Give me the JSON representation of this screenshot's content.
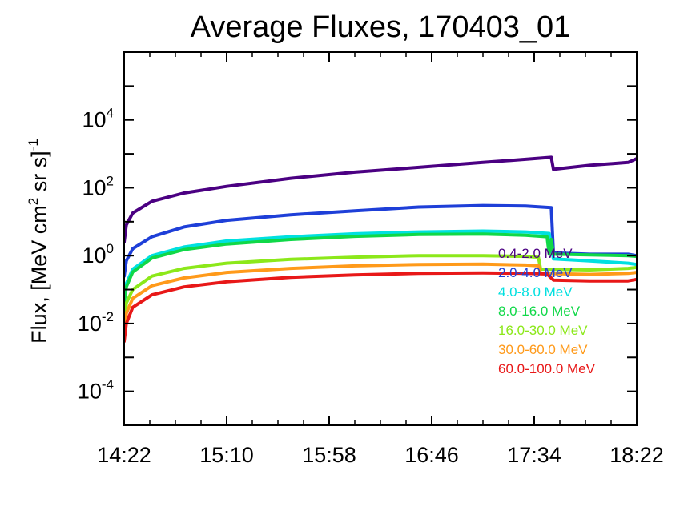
{
  "chart_data": {
    "type": "line",
    "title": "Average Fluxes, 170403_01",
    "ylabel": {
      "prefix": "Flux, [MeV cm",
      "exp1": "2",
      "middle": " sr s]",
      "exp2": "-1"
    },
    "xlabel": "",
    "x_ticks": [
      "14:22",
      "15:10",
      "15:58",
      "16:46",
      "17:34",
      "18:22"
    ],
    "y_scale": "log",
    "ylim": [
      1e-05,
      1000000
    ],
    "xlim": [
      "14:22",
      "18:22"
    ],
    "y_ticks": [
      {
        "base": "10",
        "exp": "-4",
        "value": 0.0001
      },
      {
        "base": "10",
        "exp": "-2",
        "value": 0.01
      },
      {
        "base": "10",
        "exp": "0",
        "value": 1
      },
      {
        "base": "10",
        "exp": "2",
        "value": 100
      },
      {
        "base": "10",
        "exp": "4",
        "value": 10000
      }
    ],
    "grid": false,
    "legend_position": "bottom-right",
    "series": [
      {
        "name": "0.4-2.0 MeV",
        "color": "#4b0082",
        "x": [
          "14:22",
          "14:23",
          "14:26",
          "14:35",
          "14:50",
          "15:10",
          "15:40",
          "16:10",
          "16:40",
          "17:10",
          "17:30",
          "17:42",
          "17:43",
          "18:00",
          "18:18",
          "18:22"
        ],
        "y": [
          2.5,
          8,
          18,
          40,
          70,
          110,
          190,
          290,
          400,
          560,
          690,
          790,
          350,
          460,
          560,
          720
        ]
      },
      {
        "name": "2.0-4.0 MeV",
        "color": "#1e3fd8",
        "x": [
          "14:22",
          "14:23",
          "14:26",
          "14:35",
          "14:50",
          "15:10",
          "15:40",
          "16:10",
          "16:40",
          "17:10",
          "17:30",
          "17:42",
          "17:43",
          "18:00",
          "18:18",
          "18:22"
        ],
        "y": [
          0.25,
          0.7,
          1.6,
          3.6,
          7,
          11,
          16,
          21,
          27,
          30,
          29,
          26,
          1.2,
          1.1,
          1.1,
          1.0
        ]
      },
      {
        "name": "4.0-8.0 MeV",
        "color": "#00e0e0",
        "x": [
          "14:22",
          "14:23",
          "14:26",
          "14:35",
          "14:50",
          "15:10",
          "15:40",
          "16:10",
          "16:40",
          "17:10",
          "17:30",
          "17:41",
          "17:43",
          "18:00",
          "18:18",
          "18:22"
        ],
        "y": [
          0.05,
          0.15,
          0.4,
          1.0,
          1.8,
          2.7,
          3.6,
          4.4,
          5.0,
          5.3,
          5.0,
          4.5,
          0.8,
          0.7,
          0.6,
          0.55
        ]
      },
      {
        "name": "8.0-16.0 MeV",
        "color": "#10d848",
        "x": [
          "14:22",
          "14:23",
          "14:26",
          "14:35",
          "14:50",
          "15:10",
          "15:40",
          "16:10",
          "16:40",
          "17:10",
          "17:30",
          "17:40",
          "17:41",
          "17:42",
          "17:43",
          "18:00",
          "18:18",
          "18:22"
        ],
        "y": [
          0.04,
          0.12,
          0.33,
          0.85,
          1.5,
          2.2,
          3.0,
          3.7,
          4.2,
          4.3,
          4.0,
          3.6,
          1.1,
          3.0,
          1.1,
          1.05,
          1.0,
          0.95
        ]
      },
      {
        "name": "16.0-30.0 MeV",
        "color": "#8ce81a",
        "x": [
          "14:22",
          "14:23",
          "14:26",
          "14:35",
          "14:50",
          "15:10",
          "15:40",
          "16:10",
          "16:40",
          "17:10",
          "17:30",
          "17:36",
          "17:37",
          "18:00",
          "18:18",
          "18:22"
        ],
        "y": [
          0.012,
          0.04,
          0.1,
          0.25,
          0.42,
          0.6,
          0.78,
          0.9,
          1.0,
          1.0,
          0.95,
          0.9,
          0.4,
          0.38,
          0.42,
          0.45
        ]
      },
      {
        "name": "30.0-60.0 MeV",
        "color": "#ff9a1a",
        "x": [
          "14:22",
          "14:23",
          "14:26",
          "14:35",
          "14:50",
          "15:10",
          "15:40",
          "16:10",
          "16:40",
          "17:10",
          "17:30",
          "17:36",
          "17:37",
          "18:00",
          "18:18",
          "18:22"
        ],
        "y": [
          0.006,
          0.02,
          0.055,
          0.13,
          0.22,
          0.32,
          0.42,
          0.5,
          0.55,
          0.56,
          0.53,
          0.5,
          0.3,
          0.28,
          0.3,
          0.32
        ]
      },
      {
        "name": "60.0-100.0 MeV",
        "color": "#e81818",
        "x": [
          "14:22",
          "14:23",
          "14:26",
          "14:35",
          "14:50",
          "15:10",
          "15:40",
          "16:10",
          "16:40",
          "17:10",
          "17:30",
          "17:40",
          "17:43",
          "18:00",
          "18:18",
          "18:22"
        ],
        "y": [
          0.003,
          0.01,
          0.03,
          0.07,
          0.12,
          0.17,
          0.23,
          0.27,
          0.3,
          0.31,
          0.3,
          0.29,
          0.19,
          0.18,
          0.18,
          0.2
        ]
      }
    ]
  }
}
